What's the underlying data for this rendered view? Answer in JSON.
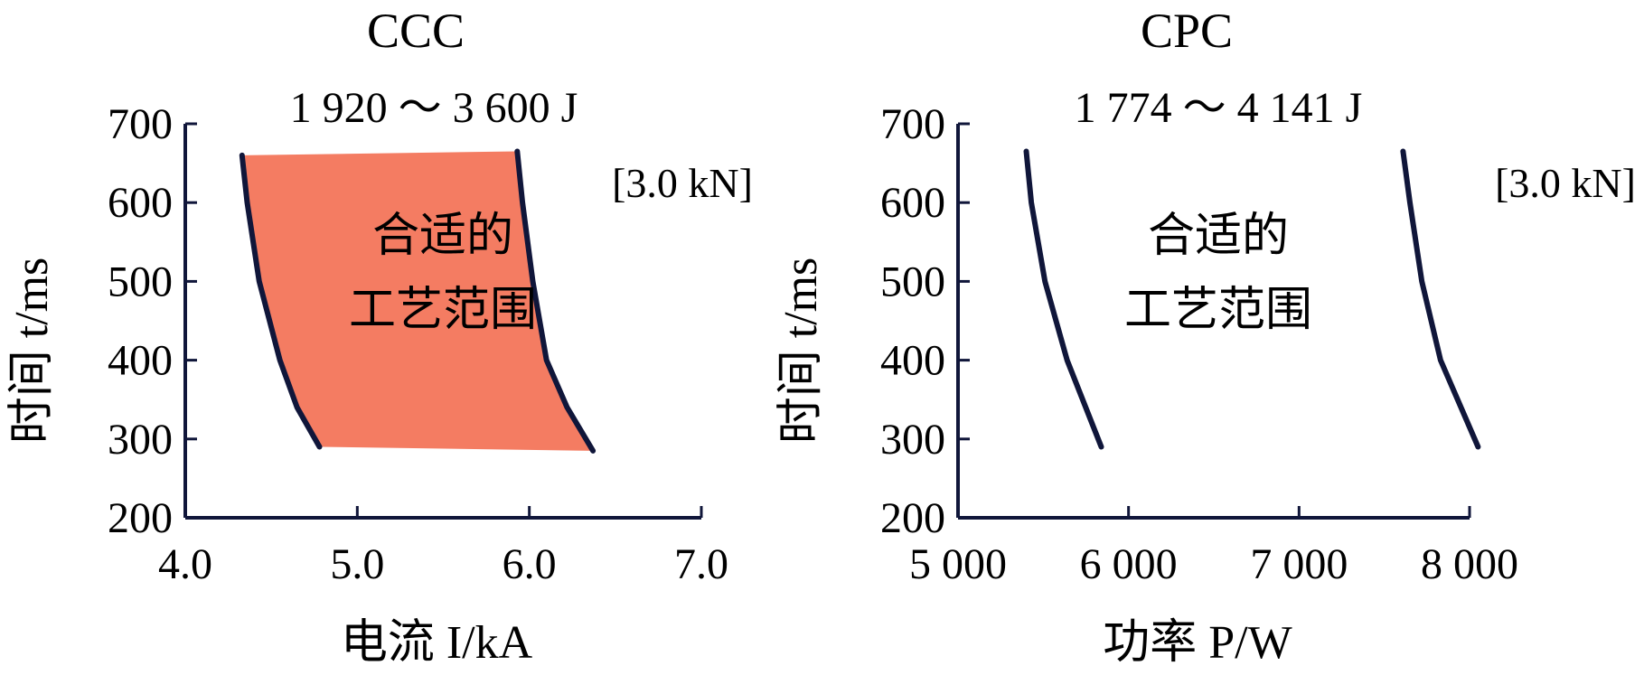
{
  "chart_data": [
    {
      "type": "area",
      "title": "CCC",
      "subtitle": "1 920 ～ 3 600 J",
      "xlabel": "电流 I/kA",
      "ylabel": "时间 t/ms",
      "xlim": [
        4.0,
        7.0
      ],
      "ylim": [
        200,
        700
      ],
      "x_ticks": [
        4.0,
        5.0,
        6.0,
        7.0
      ],
      "x_tick_labels": [
        "4.0",
        "5.0",
        "6.0",
        "7.0"
      ],
      "y_ticks": [
        200,
        300,
        400,
        500,
        600,
        700
      ],
      "y_tick_labels": [
        "200",
        "300",
        "400",
        "500",
        "600",
        "700"
      ],
      "annotation": "[3.0 kN]",
      "region_label": [
        "合适的",
        "工艺范围"
      ],
      "region_fill": "#f47c62",
      "line_color": "#10163a",
      "series": [
        {
          "x": [
            4.33,
            4.36,
            4.43,
            4.55,
            4.65,
            4.78
          ],
          "y": [
            660,
            600,
            500,
            400,
            340,
            290
          ]
        },
        {
          "x": [
            5.93,
            5.96,
            6.02,
            6.1,
            6.22,
            6.37
          ],
          "y": [
            665,
            600,
            500,
            400,
            340,
            285
          ]
        }
      ]
    },
    {
      "type": "line",
      "title": "CPC",
      "subtitle": "1 774 ～ 4 141 J",
      "xlabel": "功率 P/W",
      "ylabel": "时间 t/ms",
      "xlim": [
        5000,
        8000
      ],
      "ylim": [
        200,
        700
      ],
      "x_ticks": [
        5000,
        6000,
        7000,
        8000
      ],
      "x_tick_labels": [
        "5 000",
        "6 000",
        "7 000",
        "8 000"
      ],
      "y_ticks": [
        200,
        300,
        400,
        500,
        600,
        700
      ],
      "y_tick_labels": [
        "200",
        "300",
        "400",
        "500",
        "600",
        "700"
      ],
      "annotation": "[3.0 kN]",
      "region_label": [
        "合适的",
        "工艺范围"
      ],
      "line_color": "#10163a",
      "series": [
        {
          "x": [
            5400,
            5430,
            5510,
            5640,
            5840
          ],
          "y": [
            665,
            600,
            500,
            400,
            290
          ]
        },
        {
          "x": [
            7610,
            7650,
            7720,
            7830,
            8050
          ],
          "y": [
            665,
            600,
            500,
            400,
            290
          ]
        }
      ]
    }
  ]
}
